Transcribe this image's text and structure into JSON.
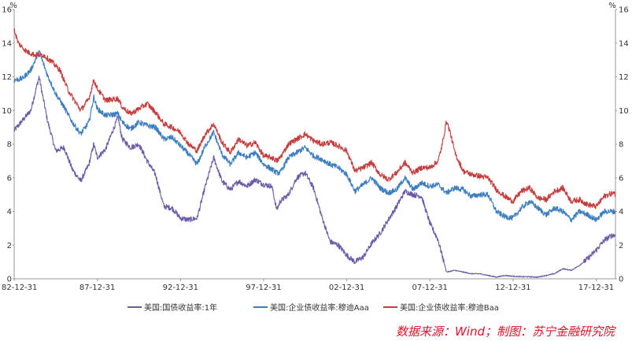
{
  "chart_data": {
    "type": "line",
    "unit_left": "%",
    "unit_right": "%",
    "ylim": [
      0,
      16
    ],
    "yticks": [
      0,
      2,
      4,
      6,
      8,
      10,
      12,
      14,
      16
    ],
    "xlim": [
      "1982-12-31",
      "2019-02-28"
    ],
    "xticks": [
      "82-12-31",
      "87-12-31",
      "92-12-31",
      "97-12-31",
      "02-12-31",
      "07-12-31",
      "12-12-31",
      "17-12-31"
    ],
    "xtick_dates": [
      "1982-12-31",
      "1987-12-31",
      "1992-12-31",
      "1997-12-31",
      "2002-12-31",
      "2007-12-31",
      "2012-12-31",
      "2017-12-31"
    ],
    "grid": false,
    "legend": "bottom",
    "series": [
      {
        "name": "美国:国债收益率:1年",
        "color": "#6b5aa6",
        "points": [
          [
            "1982-12-31",
            8.8
          ],
          [
            "1983-06-30",
            9.4
          ],
          [
            "1983-12-31",
            10.0
          ],
          [
            "1984-06-30",
            12.0
          ],
          [
            "1984-12-31",
            9.4
          ],
          [
            "1985-06-30",
            7.6
          ],
          [
            "1985-12-31",
            7.8
          ],
          [
            "1986-06-30",
            6.5
          ],
          [
            "1986-12-31",
            5.8
          ],
          [
            "1987-06-30",
            6.8
          ],
          [
            "1987-10-15",
            8.0
          ],
          [
            "1987-12-31",
            7.2
          ],
          [
            "1988-06-30",
            7.7
          ],
          [
            "1989-03-31",
            9.6
          ],
          [
            "1989-06-30",
            8.3
          ],
          [
            "1989-12-31",
            7.8
          ],
          [
            "1990-06-30",
            8.0
          ],
          [
            "1990-12-31",
            7.0
          ],
          [
            "1991-06-30",
            6.2
          ],
          [
            "1991-12-31",
            4.3
          ],
          [
            "1992-06-30",
            4.2
          ],
          [
            "1992-12-31",
            3.6
          ],
          [
            "1993-06-30",
            3.5
          ],
          [
            "1993-12-31",
            3.6
          ],
          [
            "1994-06-30",
            5.5
          ],
          [
            "1994-12-31",
            7.2
          ],
          [
            "1995-06-30",
            5.8
          ],
          [
            "1995-12-31",
            5.3
          ],
          [
            "1996-06-30",
            5.8
          ],
          [
            "1996-12-31",
            5.5
          ],
          [
            "1997-06-30",
            5.9
          ],
          [
            "1997-12-31",
            5.6
          ],
          [
            "1998-06-30",
            5.5
          ],
          [
            "1998-10-15",
            4.1
          ],
          [
            "1998-12-31",
            4.6
          ],
          [
            "1999-06-30",
            5.0
          ],
          [
            "1999-12-31",
            6.0
          ],
          [
            "2000-06-30",
            6.3
          ],
          [
            "2000-12-31",
            5.4
          ],
          [
            "2001-06-30",
            3.7
          ],
          [
            "2001-12-31",
            2.2
          ],
          [
            "2002-06-30",
            2.0
          ],
          [
            "2002-12-31",
            1.4
          ],
          [
            "2003-06-30",
            1.0
          ],
          [
            "2003-12-31",
            1.3
          ],
          [
            "2004-06-30",
            2.1
          ],
          [
            "2004-12-31",
            2.7
          ],
          [
            "2005-06-30",
            3.5
          ],
          [
            "2005-12-31",
            4.3
          ],
          [
            "2006-06-30",
            5.2
          ],
          [
            "2006-12-31",
            5.0
          ],
          [
            "2007-06-30",
            4.9
          ],
          [
            "2007-12-31",
            3.3
          ],
          [
            "2008-06-30",
            2.3
          ],
          [
            "2008-12-31",
            0.4
          ],
          [
            "2009-06-30",
            0.5
          ],
          [
            "2009-12-31",
            0.4
          ],
          [
            "2010-06-30",
            0.3
          ],
          [
            "2010-12-31",
            0.3
          ],
          [
            "2011-06-30",
            0.2
          ],
          [
            "2011-12-31",
            0.1
          ],
          [
            "2012-06-30",
            0.2
          ],
          [
            "2012-12-31",
            0.15
          ],
          [
            "2013-06-30",
            0.12
          ],
          [
            "2013-12-31",
            0.12
          ],
          [
            "2014-06-30",
            0.1
          ],
          [
            "2014-12-31",
            0.2
          ],
          [
            "2015-06-30",
            0.3
          ],
          [
            "2015-12-31",
            0.6
          ],
          [
            "2016-06-30",
            0.5
          ],
          [
            "2016-12-31",
            0.8
          ],
          [
            "2017-06-30",
            1.2
          ],
          [
            "2017-12-31",
            1.7
          ],
          [
            "2018-06-30",
            2.3
          ],
          [
            "2018-12-31",
            2.6
          ],
          [
            "2019-02-28",
            2.55
          ]
        ]
      },
      {
        "name": "美国:企业债收益率:穆迪Aaa",
        "color": "#3b7dc0",
        "points": [
          [
            "1982-12-31",
            11.8
          ],
          [
            "1983-06-30",
            11.9
          ],
          [
            "1983-12-31",
            12.4
          ],
          [
            "1984-06-30",
            13.5
          ],
          [
            "1984-12-31",
            12.1
          ],
          [
            "1985-06-30",
            11.0
          ],
          [
            "1985-12-31",
            10.2
          ],
          [
            "1986-06-30",
            9.3
          ],
          [
            "1986-12-31",
            8.6
          ],
          [
            "1987-06-30",
            9.3
          ],
          [
            "1987-10-15",
            10.8
          ],
          [
            "1987-12-31",
            10.1
          ],
          [
            "1988-06-30",
            9.7
          ],
          [
            "1989-03-31",
            9.8
          ],
          [
            "1989-06-30",
            9.3
          ],
          [
            "1989-12-31",
            8.9
          ],
          [
            "1990-06-30",
            9.3
          ],
          [
            "1990-12-31",
            9.1
          ],
          [
            "1991-06-30",
            9.0
          ],
          [
            "1991-12-31",
            8.3
          ],
          [
            "1992-06-30",
            8.4
          ],
          [
            "1992-12-31",
            7.9
          ],
          [
            "1993-06-30",
            7.4
          ],
          [
            "1993-12-31",
            6.8
          ],
          [
            "1994-06-30",
            7.9
          ],
          [
            "1994-12-31",
            8.7
          ],
          [
            "1995-06-30",
            7.4
          ],
          [
            "1995-12-31",
            6.8
          ],
          [
            "1996-06-30",
            7.5
          ],
          [
            "1996-12-31",
            7.2
          ],
          [
            "1997-06-30",
            7.5
          ],
          [
            "1997-12-31",
            6.8
          ],
          [
            "1998-06-30",
            6.5
          ],
          [
            "1998-10-15",
            6.3
          ],
          [
            "1998-12-31",
            6.3
          ],
          [
            "1999-06-30",
            7.2
          ],
          [
            "1999-12-31",
            7.5
          ],
          [
            "2000-06-30",
            7.8
          ],
          [
            "2000-12-31",
            7.3
          ],
          [
            "2001-06-30",
            7.1
          ],
          [
            "2001-12-31",
            6.8
          ],
          [
            "2002-06-30",
            6.6
          ],
          [
            "2002-12-31",
            6.2
          ],
          [
            "2003-06-30",
            5.2
          ],
          [
            "2003-12-31",
            5.6
          ],
          [
            "2004-06-30",
            6.0
          ],
          [
            "2004-12-31",
            5.4
          ],
          [
            "2005-06-30",
            5.1
          ],
          [
            "2005-12-31",
            5.3
          ],
          [
            "2006-06-30",
            6.0
          ],
          [
            "2006-12-31",
            5.3
          ],
          [
            "2007-06-30",
            5.7
          ],
          [
            "2007-12-31",
            5.5
          ],
          [
            "2008-06-30",
            5.6
          ],
          [
            "2008-12-31",
            5.1
          ],
          [
            "2009-06-30",
            5.4
          ],
          [
            "2009-12-31",
            5.3
          ],
          [
            "2010-06-30",
            4.9
          ],
          [
            "2010-12-31",
            5.0
          ],
          [
            "2011-06-30",
            5.0
          ],
          [
            "2011-12-31",
            4.0
          ],
          [
            "2012-06-30",
            3.7
          ],
          [
            "2012-12-31",
            3.6
          ],
          [
            "2013-06-30",
            4.2
          ],
          [
            "2013-12-31",
            4.6
          ],
          [
            "2014-06-30",
            4.2
          ],
          [
            "2014-12-31",
            3.8
          ],
          [
            "2015-06-30",
            4.2
          ],
          [
            "2015-12-31",
            4.0
          ],
          [
            "2016-06-30",
            3.5
          ],
          [
            "2016-12-31",
            4.0
          ],
          [
            "2017-06-30",
            3.8
          ],
          [
            "2017-12-31",
            3.5
          ],
          [
            "2018-06-30",
            4.0
          ],
          [
            "2018-12-31",
            4.0
          ],
          [
            "2019-02-28",
            4.0
          ]
        ]
      },
      {
        "name": "美国:企业债收益率:穆迪Baa",
        "color": "#c63c3c",
        "points": [
          [
            "1982-12-31",
            14.8
          ],
          [
            "1983-03-31",
            14.0
          ],
          [
            "1983-09-30",
            13.5
          ],
          [
            "1984-03-31",
            13.3
          ],
          [
            "1984-09-30",
            13.3
          ],
          [
            "1985-03-31",
            12.9
          ],
          [
            "1985-09-30",
            12.4
          ],
          [
            "1986-03-31",
            11.2
          ],
          [
            "1986-12-31",
            10.0
          ],
          [
            "1987-06-30",
            10.7
          ],
          [
            "1987-10-15",
            11.8
          ],
          [
            "1987-12-31",
            11.3
          ],
          [
            "1988-06-30",
            10.6
          ],
          [
            "1989-03-31",
            10.7
          ],
          [
            "1989-06-30",
            10.2
          ],
          [
            "1989-12-31",
            9.8
          ],
          [
            "1990-06-30",
            10.1
          ],
          [
            "1990-12-31",
            10.4
          ],
          [
            "1991-06-30",
            9.9
          ],
          [
            "1991-12-31",
            9.2
          ],
          [
            "1992-06-30",
            9.0
          ],
          [
            "1992-12-31",
            8.7
          ],
          [
            "1993-06-30",
            8.0
          ],
          [
            "1993-12-31",
            7.6
          ],
          [
            "1994-06-30",
            8.6
          ],
          [
            "1994-12-31",
            9.2
          ],
          [
            "1995-06-30",
            8.1
          ],
          [
            "1995-12-31",
            7.5
          ],
          [
            "1996-06-30",
            8.3
          ],
          [
            "1996-12-31",
            7.9
          ],
          [
            "1997-06-30",
            8.1
          ],
          [
            "1997-12-31",
            7.3
          ],
          [
            "1998-06-30",
            7.2
          ],
          [
            "1998-10-15",
            7.0
          ],
          [
            "1998-12-31",
            7.2
          ],
          [
            "1999-06-30",
            8.0
          ],
          [
            "1999-12-31",
            8.3
          ],
          [
            "2000-06-30",
            8.6
          ],
          [
            "2000-12-31",
            8.2
          ],
          [
            "2001-06-30",
            8.0
          ],
          [
            "2001-12-31",
            8.1
          ],
          [
            "2002-06-30",
            7.9
          ],
          [
            "2002-12-31",
            7.6
          ],
          [
            "2003-06-30",
            6.4
          ],
          [
            "2003-12-31",
            6.6
          ],
          [
            "2004-06-30",
            6.9
          ],
          [
            "2004-12-31",
            6.2
          ],
          [
            "2005-06-30",
            5.9
          ],
          [
            "2005-12-31",
            6.3
          ],
          [
            "2006-06-30",
            6.9
          ],
          [
            "2006-12-31",
            6.3
          ],
          [
            "2007-06-30",
            6.6
          ],
          [
            "2007-12-31",
            6.6
          ],
          [
            "2008-06-30",
            7.0
          ],
          [
            "2008-09-30",
            8.0
          ],
          [
            "2008-12-31",
            9.4
          ],
          [
            "2009-03-31",
            8.6
          ],
          [
            "2009-06-30",
            7.5
          ],
          [
            "2009-12-31",
            6.4
          ],
          [
            "2010-06-30",
            6.2
          ],
          [
            "2010-12-31",
            6.1
          ],
          [
            "2011-06-30",
            6.0
          ],
          [
            "2011-12-31",
            5.3
          ],
          [
            "2012-06-30",
            4.9
          ],
          [
            "2012-12-31",
            4.6
          ],
          [
            "2013-06-30",
            5.2
          ],
          [
            "2013-12-31",
            5.4
          ],
          [
            "2014-06-30",
            4.8
          ],
          [
            "2014-12-31",
            4.7
          ],
          [
            "2015-06-30",
            5.2
          ],
          [
            "2015-12-31",
            5.4
          ],
          [
            "2016-06-30",
            4.6
          ],
          [
            "2016-12-31",
            4.7
          ],
          [
            "2017-06-30",
            4.4
          ],
          [
            "2017-12-31",
            4.3
          ],
          [
            "2018-06-30",
            4.9
          ],
          [
            "2018-12-31",
            5.1
          ],
          [
            "2019-02-28",
            5.0
          ]
        ]
      }
    ]
  },
  "source_text": "数据来源：Wind；制图：苏宁金融研究院"
}
